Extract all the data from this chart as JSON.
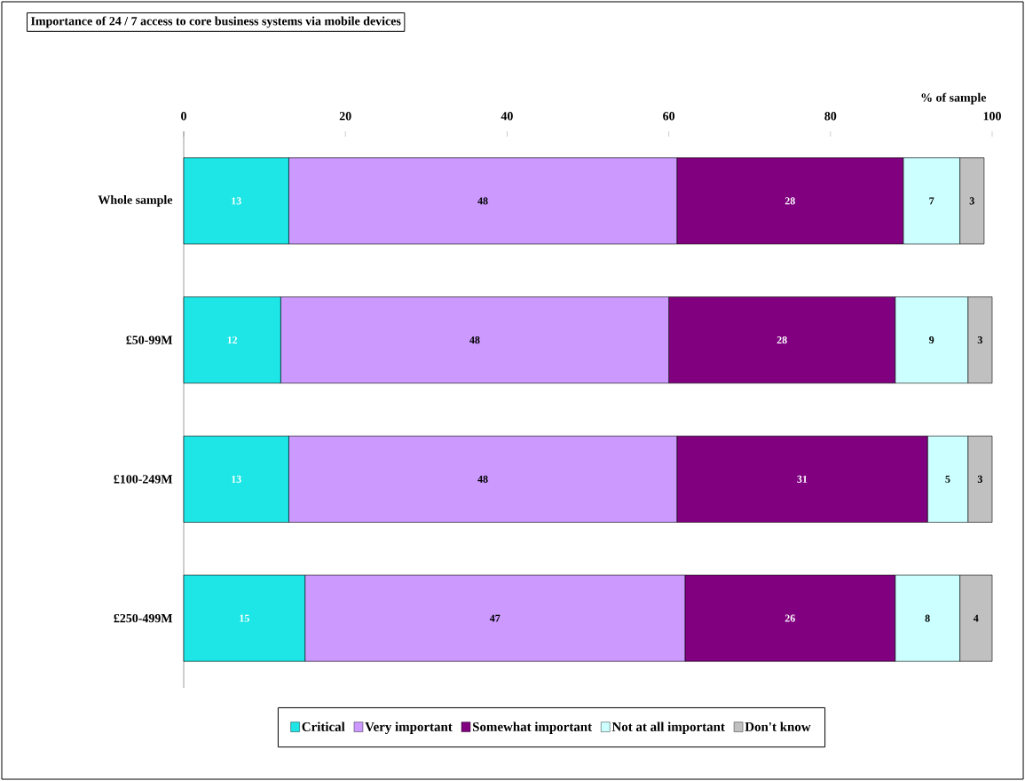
{
  "chart_data": {
    "type": "bar",
    "orientation": "horizontal",
    "stacked": true,
    "data_labels": true,
    "legend": "bottom",
    "title": "Importance of 24 / 7 access to core business systems via mobile devices",
    "xlabel": "% of sample",
    "categories": [
      "Whole sample",
      "£50-99M",
      "£100-249M",
      "£250-499M"
    ],
    "xlim": [
      0,
      100
    ],
    "xticks": [
      0,
      20,
      40,
      60,
      80,
      100
    ],
    "series": [
      {
        "name": "Critical",
        "color": "#1ee6e6",
        "values": [
          13,
          12,
          13,
          15
        ]
      },
      {
        "name": "Very important",
        "color": "#cc99ff",
        "values": [
          48,
          48,
          48,
          47
        ]
      },
      {
        "name": "Somewhat important",
        "color": "#800080",
        "values": [
          28,
          28,
          31,
          26
        ]
      },
      {
        "name": "Not at all important",
        "color": "#ccffff",
        "values": [
          7,
          9,
          5,
          8
        ]
      },
      {
        "name": "Don't know",
        "color": "#c0c0c0",
        "values": [
          3,
          3,
          3,
          4
        ]
      }
    ]
  }
}
